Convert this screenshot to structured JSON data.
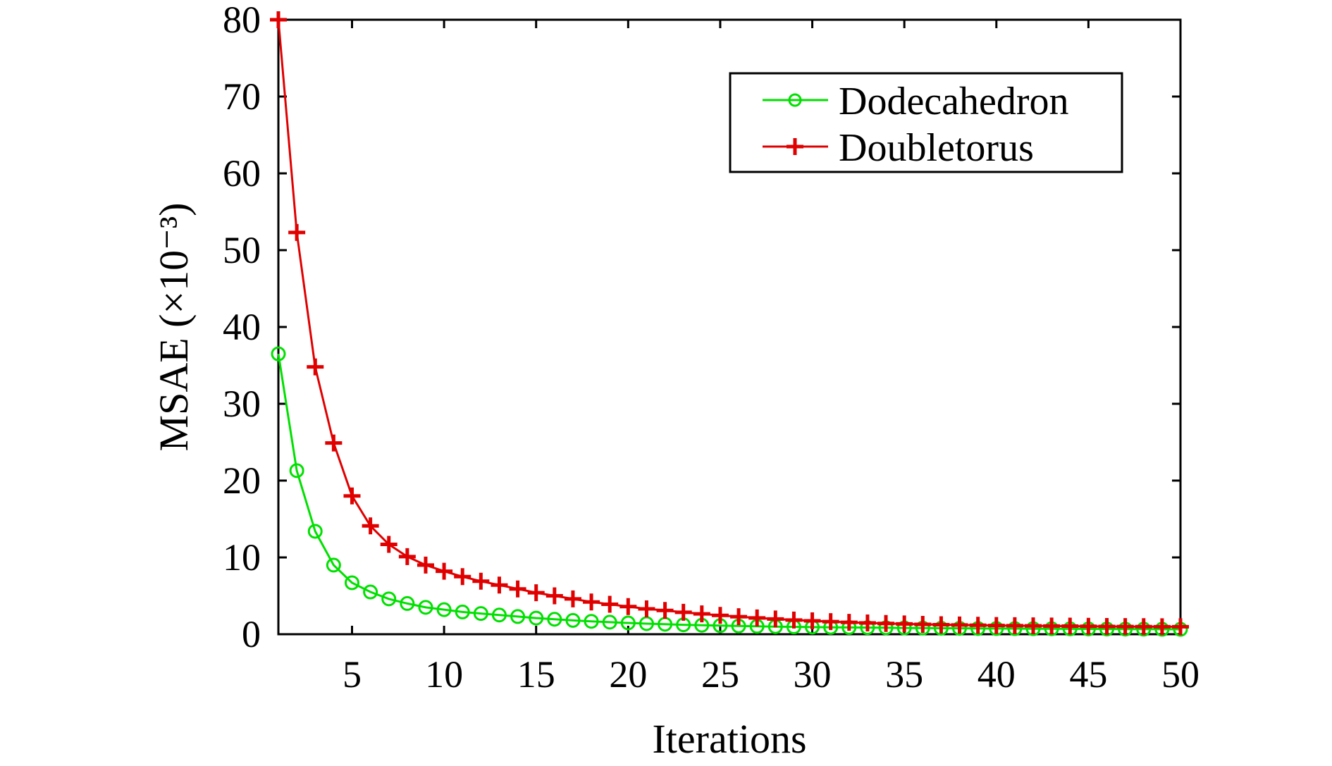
{
  "chart_data": {
    "type": "line",
    "title": "",
    "xlabel": "Iterations",
    "ylabel": "MSAE (×10⁻³)",
    "xlim": [
      1,
      50
    ],
    "ylim": [
      0,
      80
    ],
    "xticks": [
      5,
      10,
      15,
      20,
      25,
      30,
      35,
      40,
      45,
      50
    ],
    "yticks": [
      0,
      10,
      20,
      30,
      40,
      50,
      60,
      70,
      80
    ],
    "grid": false,
    "legend_position": "top-right",
    "x": [
      1,
      2,
      3,
      4,
      5,
      6,
      7,
      8,
      9,
      10,
      11,
      12,
      13,
      14,
      15,
      16,
      17,
      18,
      19,
      20,
      21,
      22,
      23,
      24,
      25,
      26,
      27,
      28,
      29,
      30,
      31,
      32,
      33,
      34,
      35,
      36,
      37,
      38,
      39,
      40,
      41,
      42,
      43,
      44,
      45,
      46,
      47,
      48,
      49,
      50
    ],
    "series": [
      {
        "name": "Dodecahedron",
        "color": "#00e000",
        "marker": "circle",
        "values": [
          36.5,
          21.3,
          13.4,
          9.0,
          6.7,
          5.5,
          4.6,
          4.0,
          3.5,
          3.2,
          2.9,
          2.7,
          2.5,
          2.3,
          2.1,
          1.95,
          1.8,
          1.68,
          1.57,
          1.47,
          1.38,
          1.3,
          1.23,
          1.17,
          1.12,
          1.07,
          1.03,
          0.99,
          0.96,
          0.93,
          0.9,
          0.88,
          0.86,
          0.84,
          0.82,
          0.8,
          0.78,
          0.77,
          0.75,
          0.74,
          0.73,
          0.72,
          0.71,
          0.7,
          0.69,
          0.68,
          0.67,
          0.66,
          0.65,
          0.64
        ]
      },
      {
        "name": "Doubletorus",
        "color": "#e00000",
        "marker": "plus",
        "values": [
          80.0,
          52.3,
          34.8,
          24.9,
          18.0,
          14.1,
          11.7,
          10.1,
          9.0,
          8.2,
          7.5,
          6.9,
          6.4,
          5.9,
          5.4,
          5.0,
          4.6,
          4.2,
          3.9,
          3.6,
          3.3,
          3.1,
          2.85,
          2.65,
          2.45,
          2.28,
          2.12,
          1.98,
          1.85,
          1.74,
          1.64,
          1.55,
          1.47,
          1.4,
          1.34,
          1.29,
          1.24,
          1.2,
          1.17,
          1.14,
          1.11,
          1.09,
          1.07,
          1.05,
          1.03,
          1.01,
          1.0,
          0.99,
          0.98,
          0.97
        ]
      }
    ]
  }
}
